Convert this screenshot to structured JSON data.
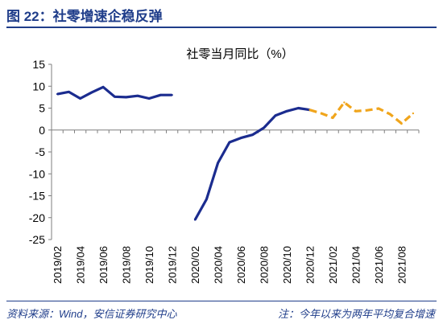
{
  "figure": {
    "title": "图 22：社零增速企稳反弹",
    "source": "资料来源：Wind，安信证券研究中心",
    "note": "注：今年以来为两年平均复合增速"
  },
  "colors": {
    "accent": "#1f3d8a",
    "actual": "#1b2c8f",
    "two_year_avg": "#f0a51c",
    "axis": "#7f7f7f"
  },
  "chart_data": {
    "type": "line",
    "title": "社零当月同比（%）",
    "xlabel": "",
    "ylabel": "",
    "ylim": [
      -25,
      15
    ],
    "yticks": [
      15,
      10,
      5,
      0,
      -5,
      -10,
      -15,
      -20,
      -25
    ],
    "grid": false,
    "legend": "none",
    "x_tick_labels": [
      "2019/02",
      "2019/04",
      "2019/06",
      "2019/08",
      "2019/10",
      "2019/12",
      "2020/02",
      "2020/04",
      "2020/06",
      "2020/08",
      "2020/10",
      "2020/12",
      "2021/02",
      "2021/04",
      "2021/06",
      "2021/08"
    ],
    "x": [
      "2019/02",
      "2019/03",
      "2019/04",
      "2019/05",
      "2019/06",
      "2019/07",
      "2019/08",
      "2019/09",
      "2019/10",
      "2019/11",
      "2019/12",
      "2020/01",
      "2020/02",
      "2020/03",
      "2020/04",
      "2020/05",
      "2020/06",
      "2020/07",
      "2020/08",
      "2020/09",
      "2020/10",
      "2020/11",
      "2020/12",
      "2021/01",
      "2021/02",
      "2021/03",
      "2021/04",
      "2021/05",
      "2021/06",
      "2021/07",
      "2021/08",
      "2021/09"
    ],
    "series": [
      {
        "style": "solid",
        "values": [
          8.2,
          8.7,
          7.2,
          8.6,
          9.8,
          7.6,
          7.5,
          7.8,
          7.2,
          8.0,
          8.0,
          null,
          -20.5,
          -15.8,
          -7.5,
          -2.8,
          -1.8,
          -1.1,
          0.5,
          3.3,
          4.3,
          5.0,
          4.6,
          null,
          null,
          null,
          null,
          null,
          null,
          null,
          null,
          null
        ]
      },
      {
        "style": "dashed",
        "values": [
          null,
          null,
          null,
          null,
          null,
          null,
          null,
          null,
          null,
          null,
          null,
          null,
          null,
          null,
          null,
          null,
          null,
          null,
          null,
          null,
          null,
          null,
          4.6,
          3.8,
          2.8,
          6.3,
          4.3,
          4.5,
          4.9,
          3.6,
          1.5,
          3.8
        ]
      }
    ]
  }
}
